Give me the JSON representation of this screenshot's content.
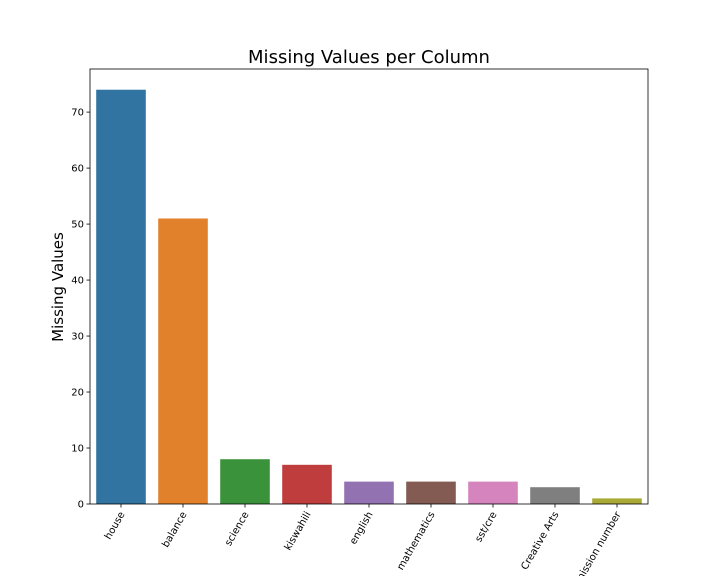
{
  "chart_data": {
    "type": "bar",
    "title": "Missing Values per Column",
    "xlabel": "",
    "ylabel": "Missing Values",
    "categories": [
      "house",
      "balance",
      "science",
      "kiswahili",
      "english",
      "mathematics",
      "sst/cre",
      "Creative Arts",
      "admission number"
    ],
    "values": [
      74,
      51,
      8,
      7,
      4,
      4,
      4,
      3,
      1
    ],
    "colors": [
      "#3274a1",
      "#e1812c",
      "#3a923a",
      "#c03d3e",
      "#9372b2",
      "#845b53",
      "#d684bd",
      "#7f7f7f",
      "#a9aa35"
    ],
    "ylim": [
      0,
      77.7
    ],
    "yticks": [
      0,
      10,
      20,
      30,
      40,
      50,
      60,
      70
    ],
    "grid": false,
    "legend": "none"
  }
}
